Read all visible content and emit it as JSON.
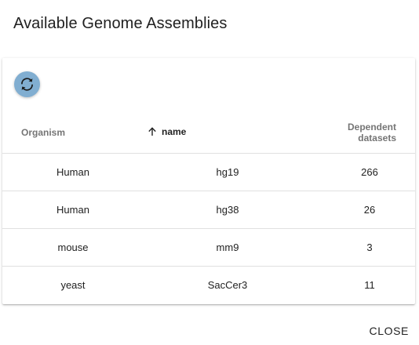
{
  "dialog": {
    "title": "Available Genome Assemblies",
    "close_label": "CLOSE"
  },
  "toolbar": {
    "refresh_icon": "refresh-icon",
    "refresh_button_color": "#81aed1"
  },
  "table": {
    "columns": [
      {
        "key": "organism",
        "label": "Organism"
      },
      {
        "key": "name",
        "label": "name",
        "sorted": "ascending",
        "sort_icon": "arrow-up-icon"
      },
      {
        "key": "dependent_datasets",
        "label": "Dependent datasets"
      }
    ],
    "rows": [
      {
        "organism": "Human",
        "name": "hg19",
        "dependent_datasets": "266"
      },
      {
        "organism": "Human",
        "name": "hg38",
        "dependent_datasets": "26"
      },
      {
        "organism": "mouse",
        "name": "mm9",
        "dependent_datasets": "3"
      },
      {
        "organism": "yeast",
        "name": "SacCer3",
        "dependent_datasets": "11"
      }
    ]
  }
}
